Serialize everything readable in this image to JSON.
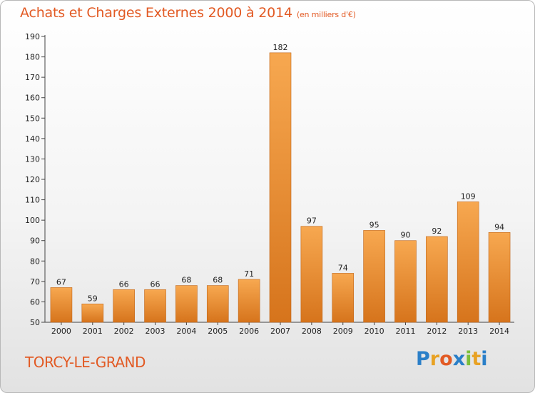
{
  "title": "Achats et Charges Externes 2000 à 2014",
  "subtitle": "(en milliers d'€)",
  "commune": "TORCY-LE-GRAND",
  "logo": {
    "letters": [
      "P",
      "r",
      "o",
      "x",
      "i",
      "t",
      "i"
    ],
    "colors": [
      "#2a7fc8",
      "#e8a224",
      "#e25a24",
      "#2a7fc8",
      "#7cbf3a",
      "#e8a224",
      "#2a7fc8"
    ]
  },
  "colors": {
    "bar_light": "#f7a850",
    "bar_dark": "#d6741c",
    "axis": "#444444",
    "text": "#222222"
  },
  "chart_data": {
    "type": "bar",
    "categories": [
      "2000",
      "2001",
      "2002",
      "2003",
      "2004",
      "2005",
      "2006",
      "2007",
      "2008",
      "2009",
      "2010",
      "2011",
      "2012",
      "2013",
      "2014"
    ],
    "values": [
      67,
      59,
      66,
      66,
      68,
      68,
      71,
      182,
      97,
      74,
      95,
      90,
      92,
      109,
      94
    ],
    "data_labels": [
      "67",
      "59",
      "66",
      "66",
      "68",
      "68",
      "71",
      "182",
      "97",
      "74",
      "95",
      "90",
      "92",
      "109",
      "94"
    ],
    "yticks": [
      50,
      60,
      70,
      80,
      90,
      100,
      110,
      120,
      130,
      140,
      150,
      160,
      170,
      180,
      190
    ],
    "ytick_labels": [
      "50",
      "60",
      "70",
      "80",
      "90",
      "100",
      "110",
      "120",
      "130",
      "140",
      "150",
      "160",
      "170",
      "180",
      "190"
    ],
    "ylim": [
      50,
      190
    ],
    "grid": false,
    "legend": "none"
  }
}
